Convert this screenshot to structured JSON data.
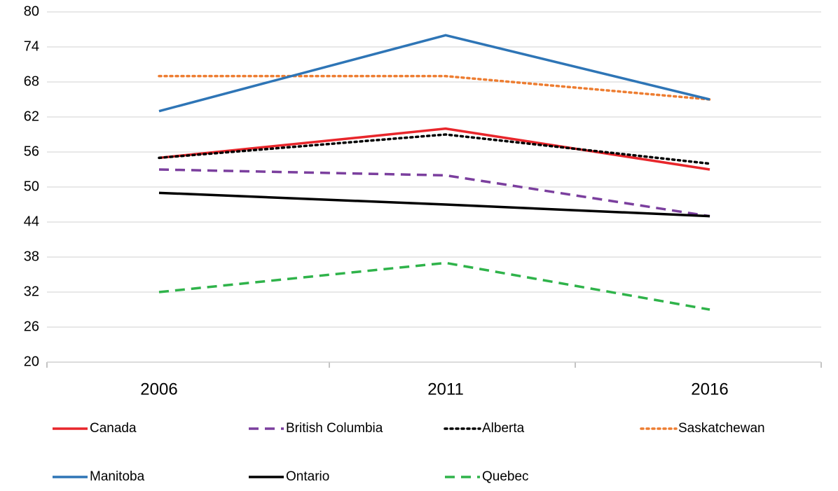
{
  "chart_data": {
    "type": "line",
    "categories": [
      "2006",
      "2011",
      "2016"
    ],
    "series": [
      {
        "name": "Canada",
        "color": "#e8262b",
        "style": "solid",
        "values": [
          55,
          60,
          53
        ]
      },
      {
        "name": "British Columbia",
        "color": "#7b3f9e",
        "style": "dashed",
        "values": [
          53,
          52,
          45
        ]
      },
      {
        "name": "Alberta",
        "color": "#000000",
        "style": "dotted",
        "values": [
          55,
          59,
          54
        ]
      },
      {
        "name": "Saskatchewan",
        "color": "#ed7d31",
        "style": "dotted",
        "values": [
          69,
          69,
          65
        ]
      },
      {
        "name": "Manitoba",
        "color": "#2e75b6",
        "style": "solid",
        "values": [
          63,
          76,
          65
        ]
      },
      {
        "name": "Ontario",
        "color": "#000000",
        "style": "solid",
        "values": [
          49,
          47,
          45
        ]
      },
      {
        "name": "Quebec",
        "color": "#2fb34a",
        "style": "dashed",
        "values": [
          32,
          37,
          29
        ]
      }
    ],
    "ylim": [
      20,
      80
    ],
    "yticks": [
      20,
      26,
      32,
      38,
      44,
      50,
      56,
      62,
      68,
      74,
      80
    ],
    "grid": true
  }
}
